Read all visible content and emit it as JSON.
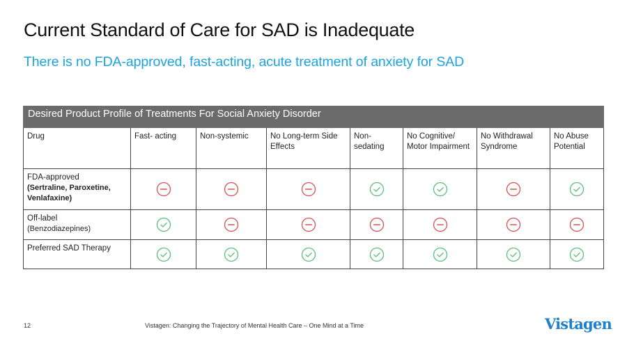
{
  "slide": {
    "title": "Current Standard of Care for SAD is Inadequate",
    "subtitle": "There is no FDA-approved, fast-acting, acute treatment of anxiety for SAD",
    "page_number": "12",
    "footer_text": "Vistagen: Changing the Trajectory of Mental Health Care – One Mind at a Time",
    "logo_text": "Vistagen"
  },
  "colors": {
    "title": "#111111",
    "subtitle": "#1aa3dc",
    "table_band": "#6b6b6b",
    "check": "#5cbf7a",
    "minus": "#d9504f",
    "logo": "#1e7fcf"
  },
  "table": {
    "caption": "Desired Product Profile of Treatments For Social Anxiety Disorder",
    "columns": [
      "Drug",
      "Fast- acting",
      "Non-systemic",
      "No Long-term Side Effects",
      "Non-sedating",
      "No Cognitive/ Motor Impairment",
      "No Withdrawal Syndrome",
      "No Abuse Potential"
    ],
    "rows": [
      {
        "label": "FDA-approved",
        "sublabel": "(Sertraline, Paroxetine, Venlafaxine)",
        "values": [
          "minus",
          "minus",
          "minus",
          "check",
          "check",
          "minus",
          "check"
        ]
      },
      {
        "label": "Off-label",
        "sublabel": "(Benzodiazepines)",
        "values": [
          "check",
          "minus",
          "minus",
          "minus",
          "minus",
          "minus",
          "minus"
        ]
      },
      {
        "label": "Preferred SAD Therapy",
        "sublabel": "",
        "values": [
          "check",
          "check",
          "check",
          "check",
          "check",
          "check",
          "check"
        ]
      }
    ]
  },
  "icons": {
    "check": "check-circle-icon",
    "minus": "minus-circle-icon"
  }
}
